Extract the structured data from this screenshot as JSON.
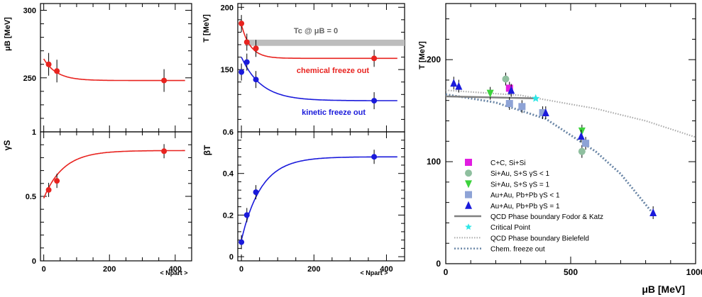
{
  "chart_data": [
    {
      "panel": "mu_B vs N_part",
      "type": "scatter",
      "ylabel": "μB [MeV]",
      "ylim": [
        210,
        305
      ],
      "yticks": [
        250,
        300
      ],
      "xlim": [
        -10,
        450
      ],
      "points": [
        [
          15,
          260
        ],
        [
          40,
          255
        ],
        [
          366,
          248
        ]
      ],
      "fit": {
        "form": "a+b*exp(-x/c)",
        "a": 248,
        "b": 16,
        "c": 40,
        "color": "#e8231f"
      }
    },
    {
      "panel": "gamma_S vs N_part",
      "type": "scatter",
      "ylabel": "γS",
      "xlabel": "< Npart >",
      "ylim": [
        0,
        1
      ],
      "yticks": [
        0,
        0.5,
        1
      ],
      "xticks": [
        0,
        200,
        400
      ],
      "xlim": [
        -10,
        450
      ],
      "points": [
        [
          15,
          0.55
        ],
        [
          40,
          0.62
        ],
        [
          366,
          0.85
        ]
      ],
      "fit": {
        "form": "a+b*exp(-x/c)",
        "a": 0.855,
        "b": -0.37,
        "c": 60,
        "color": "#e8231f"
      }
    },
    {
      "panel": "T vs N_part",
      "type": "scatter",
      "ylabel": "T [MeV]",
      "ylim": [
        100,
        203
      ],
      "yticks": [
        150,
        200
      ],
      "xlim": [
        -10,
        450
      ],
      "band": {
        "y0": 169,
        "y1": 174,
        "label": "Tc @ μB = 0"
      },
      "series": [
        {
          "name": "chemical freeze out",
          "color": "#e8231f",
          "points": [
            [
              0,
              187
            ],
            [
              15,
              172
            ],
            [
              40,
              167
            ],
            [
              366,
              159
            ]
          ],
          "fit": {
            "a": 159,
            "b": 27,
            "c": 25
          }
        },
        {
          "name": "kinetic freeze out",
          "color": "#1a1adb",
          "points": [
            [
              0,
              148
            ],
            [
              15,
              156
            ],
            [
              40,
              142
            ],
            [
              366,
              125
            ]
          ],
          "fit": {
            "a": 125,
            "b": 35,
            "c": 55
          }
        }
      ]
    },
    {
      "panel": "beta_T vs N_part",
      "type": "scatter",
      "ylabel": "βT",
      "xlabel": "< Npart >",
      "ylim": [
        -0.02,
        0.6
      ],
      "yticks": [
        0,
        0.2,
        0.4,
        0.6
      ],
      "xticks": [
        0,
        200,
        400
      ],
      "xlim": [
        -10,
        450
      ],
      "points": [
        [
          0,
          0.07
        ],
        [
          15,
          0.2
        ],
        [
          40,
          0.31
        ],
        [
          366,
          0.48
        ]
      ],
      "fit": {
        "form": "a+b*exp(-x/c)",
        "a": 0.48,
        "b": -0.4,
        "c": 55,
        "color": "#1a1adb"
      }
    },
    {
      "panel": "phase diagram",
      "type": "scatter",
      "xlabel": "μB [MeV]",
      "ylabel": "T [MeV]",
      "xlim": [
        0,
        1000
      ],
      "ylim": [
        0,
        255
      ],
      "xticks": [
        0,
        500,
        1000
      ],
      "yticks": [
        0,
        100,
        200
      ],
      "legend": [
        {
          "label": "C+C, Si+Si",
          "marker": "square",
          "color": "#e11de1"
        },
        {
          "label": "Si+Au, S+S  γS < 1",
          "marker": "circle",
          "color": "#8fbf9f"
        },
        {
          "label": "Si+Au, S+S  γS = 1",
          "marker": "tri-down",
          "color": "#3cd23c"
        },
        {
          "label": "Au+Au, Pb+Pb  γS < 1",
          "marker": "square",
          "color": "#8ea3d6"
        },
        {
          "label": "Au+Au, Pb+Pb  γS = 1",
          "marker": "tri-up",
          "color": "#1a1adb"
        },
        {
          "label": "QCD Phase boundary Fodor & Katz",
          "marker": "line",
          "color": "#808080"
        },
        {
          "label": "Critical Point",
          "marker": "star",
          "color": "#2ee6e6"
        },
        {
          "label": "QCD Phase boundary Bielefeld",
          "marker": "dotted",
          "color": "#aaaaaa"
        },
        {
          "label": "Chem. freeze out",
          "marker": "dashed",
          "color": "#6a86a6"
        }
      ],
      "points": [
        {
          "x": 255,
          "y": 172,
          "marker": "square",
          "color": "#e11de1"
        },
        {
          "x": 240,
          "y": 181,
          "marker": "circle",
          "color": "#8fbf9f"
        },
        {
          "x": 545,
          "y": 110,
          "marker": "circle",
          "color": "#8fbf9f"
        },
        {
          "x": 178,
          "y": 167,
          "marker": "tri-down",
          "color": "#3cd23c"
        },
        {
          "x": 545,
          "y": 130,
          "marker": "tri-down",
          "color": "#3cd23c"
        },
        {
          "x": 255,
          "y": 157,
          "marker": "square",
          "color": "#8ea3d6"
        },
        {
          "x": 305,
          "y": 154,
          "marker": "square",
          "color": "#8ea3d6"
        },
        {
          "x": 388,
          "y": 148,
          "marker": "square",
          "color": "#8ea3d6"
        },
        {
          "x": 560,
          "y": 118,
          "marker": "square",
          "color": "#8ea3d6"
        },
        {
          "x": 32,
          "y": 177,
          "marker": "tri-up",
          "color": "#1a1adb"
        },
        {
          "x": 52,
          "y": 174,
          "marker": "tri-up",
          "color": "#1a1adb"
        },
        {
          "x": 262,
          "y": 170,
          "marker": "tri-up",
          "color": "#1a1adb"
        },
        {
          "x": 400,
          "y": 148,
          "marker": "tri-up",
          "color": "#1a1adb"
        },
        {
          "x": 542,
          "y": 125,
          "marker": "tri-up",
          "color": "#1a1adb"
        },
        {
          "x": 830,
          "y": 50,
          "marker": "tri-up",
          "color": "#1a1adb"
        }
      ],
      "critical_point": {
        "x": 360,
        "y": 162
      },
      "fodor_katz": [
        [
          0,
          164
        ],
        [
          360,
          162
        ]
      ],
      "bielefeld": [
        [
          0,
          170
        ],
        [
          300,
          165
        ],
        [
          600,
          152
        ],
        [
          800,
          140
        ],
        [
          1000,
          124
        ]
      ],
      "chem_freeze_out": [
        [
          0,
          166
        ],
        [
          200,
          158
        ],
        [
          400,
          142
        ],
        [
          600,
          110
        ],
        [
          700,
          88
        ],
        [
          800,
          58
        ],
        [
          830,
          49
        ]
      ]
    }
  ]
}
